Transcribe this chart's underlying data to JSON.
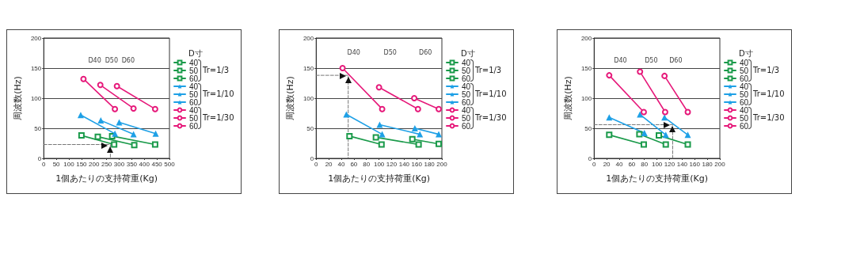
{
  "chart_data": [
    {
      "type": "line",
      "xlabel": "1個あたりの支持荷重(Kg)",
      "ylabel": "周波数(Hz)",
      "legend_title": "D寸",
      "legend": "right",
      "grid": "y",
      "xlim": [
        0,
        500
      ],
      "xticks": [
        0,
        50,
        100,
        150,
        200,
        250,
        300,
        350,
        400,
        450,
        500
      ],
      "ylim": [
        0,
        200
      ],
      "yticks": [
        0,
        50,
        100,
        150,
        200
      ],
      "annotations": [
        "Tr=1/3",
        "Tr=1/10",
        "Tr=1/30",
        "D40",
        "D50",
        "D60"
      ],
      "series": [
        {
          "name": "40",
          "color": "#1a9a4a",
          "marker": "square",
          "x": [
            150,
            280
          ],
          "values": [
            38,
            23
          ]
        },
        {
          "name": "50",
          "color": "#1a9a4a",
          "marker": "square",
          "x": [
            215,
            360
          ],
          "values": [
            36,
            22
          ]
        },
        {
          "name": "60",
          "color": "#1a9a4a",
          "marker": "square",
          "x": [
            272,
            443
          ],
          "values": [
            37,
            23
          ]
        },
        {
          "name": "40",
          "color": "#1ea0e6",
          "marker": "triangle",
          "x": [
            147,
            283
          ],
          "values": [
            72,
            41
          ]
        },
        {
          "name": "50",
          "color": "#1ea0e6",
          "marker": "triangle",
          "x": [
            227,
            357
          ],
          "values": [
            63,
            40
          ]
        },
        {
          "name": "60",
          "color": "#1ea0e6",
          "marker": "triangle",
          "x": [
            300,
            445
          ],
          "values": [
            60,
            41
          ]
        },
        {
          "name": "40",
          "color": "#e6197a",
          "marker": "circle",
          "x": [
            158,
            283
          ],
          "values": [
            132,
            82
          ]
        },
        {
          "name": "50",
          "color": "#e6197a",
          "marker": "circle",
          "x": [
            225,
            357
          ],
          "values": [
            122,
            83
          ]
        },
        {
          "name": "60",
          "color": "#e6197a",
          "marker": "circle",
          "x": [
            291,
            443
          ],
          "values": [
            120,
            82
          ]
        },
        {
          "color": "#777777",
          "marker": "none",
          "line_style": "dashed",
          "x": [
            0,
            265,
            265
          ],
          "values": [
            23,
            23,
            0
          ]
        }
      ]
    },
    {
      "type": "line",
      "xlabel": "1個あたりの支持荷重(Kg)",
      "ylabel": "周波数(Hz)",
      "legend_title": "D寸",
      "legend": "right",
      "grid": "y",
      "xlim": [
        0,
        200
      ],
      "xticks": [
        0,
        20,
        40,
        60,
        80,
        100,
        120,
        140,
        160,
        180,
        200
      ],
      "ylim": [
        0,
        200
      ],
      "yticks": [
        0,
        50,
        100,
        150,
        200
      ],
      "annotations": [
        "Tr=1/3",
        "Tr=1/10",
        "Tr=1/30",
        "D40",
        "D50",
        "D60"
      ],
      "series": [
        {
          "name": "40",
          "color": "#1a9a4a",
          "marker": "square",
          "x": [
            53,
            104
          ],
          "values": [
            37,
            23
          ]
        },
        {
          "name": "50",
          "color": "#1a9a4a",
          "marker": "square",
          "x": [
            95,
            163
          ],
          "values": [
            35,
            23
          ]
        },
        {
          "name": "60",
          "color": "#1a9a4a",
          "marker": "square",
          "x": [
            153,
            195
          ],
          "values": [
            32,
            24
          ]
        },
        {
          "name": "40",
          "color": "#1ea0e6",
          "marker": "triangle",
          "x": [
            48,
            105
          ],
          "values": [
            73,
            40
          ]
        },
        {
          "name": "50",
          "color": "#1ea0e6",
          "marker": "triangle",
          "x": [
            101,
            165
          ],
          "values": [
            56,
            40
          ]
        },
        {
          "name": "60",
          "color": "#1ea0e6",
          "marker": "triangle",
          "x": [
            157,
            195
          ],
          "values": [
            50,
            40
          ]
        },
        {
          "name": "40",
          "color": "#e6197a",
          "marker": "circle",
          "x": [
            42,
            105
          ],
          "values": [
            150,
            82
          ]
        },
        {
          "name": "50",
          "color": "#e6197a",
          "marker": "circle",
          "x": [
            100,
            162
          ],
          "values": [
            118,
            82
          ]
        },
        {
          "name": "60",
          "color": "#e6197a",
          "marker": "circle",
          "x": [
            156,
            195
          ],
          "values": [
            100,
            82
          ]
        },
        {
          "color": "#777777",
          "marker": "none",
          "line_style": "dashed",
          "x": [
            0,
            51,
            51
          ],
          "values": [
            138,
            138,
            0
          ]
        }
      ]
    },
    {
      "type": "line",
      "xlabel": "1個あたりの支持荷重(Kg)",
      "ylabel": "周波数(Hz)",
      "legend_title": "D寸",
      "legend": "right",
      "grid": "y",
      "xlim": [
        0,
        200
      ],
      "xticks": [
        0,
        20,
        40,
        60,
        80,
        100,
        120,
        140,
        160,
        180,
        200
      ],
      "ylim": [
        0,
        200
      ],
      "yticks": [
        0,
        50,
        100,
        150,
        200
      ],
      "annotations": [
        "Tr=1/3",
        "Tr=1/10",
        "Tr=1/30",
        "D40",
        "D50",
        "D60"
      ],
      "series": [
        {
          "name": "40",
          "color": "#1a9a4a",
          "marker": "square",
          "x": [
            24,
            79
          ],
          "values": [
            39,
            23
          ]
        },
        {
          "name": "50",
          "color": "#1a9a4a",
          "marker": "square",
          "x": [
            72,
            114
          ],
          "values": [
            40,
            23
          ]
        },
        {
          "name": "60",
          "color": "#1a9a4a",
          "marker": "square",
          "x": [
            103,
            149
          ],
          "values": [
            38,
            23
          ]
        },
        {
          "name": "40",
          "color": "#1ea0e6",
          "marker": "triangle",
          "x": [
            24,
            80
          ],
          "values": [
            68,
            42
          ]
        },
        {
          "name": "50",
          "color": "#1ea0e6",
          "marker": "triangle",
          "x": [
            73,
            114
          ],
          "values": [
            73,
            39
          ]
        },
        {
          "name": "60",
          "color": "#1ea0e6",
          "marker": "triangle",
          "x": [
            112,
            149
          ],
          "values": [
            68,
            39
          ]
        },
        {
          "name": "40",
          "color": "#e6197a",
          "marker": "circle",
          "x": [
            24,
            79
          ],
          "values": [
            138,
            77
          ]
        },
        {
          "name": "50",
          "color": "#e6197a",
          "marker": "circle",
          "x": [
            73,
            113
          ],
          "values": [
            144,
            77
          ]
        },
        {
          "name": "60",
          "color": "#e6197a",
          "marker": "circle",
          "x": [
            112,
            149
          ],
          "values": [
            137,
            77
          ]
        },
        {
          "color": "#777777",
          "marker": "none",
          "line_style": "dashed",
          "x": [
            0,
            125,
            125
          ],
          "values": [
            56,
            56,
            0
          ]
        }
      ]
    }
  ]
}
